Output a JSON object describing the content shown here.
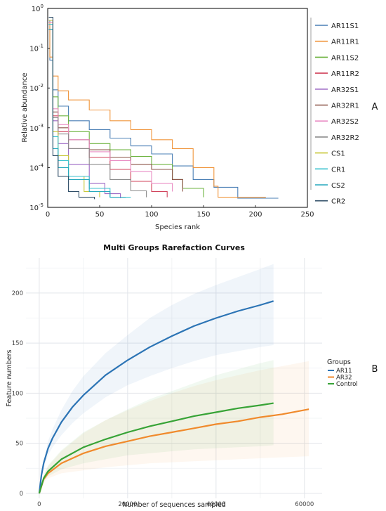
{
  "panel_labels": {
    "a": "A",
    "b": "B"
  },
  "chart_data": [
    {
      "type": "line",
      "panel": "A",
      "title": "",
      "xlabel": "Species rank",
      "ylabel": "Relative abundance",
      "y_scale": "log",
      "xlim": [
        0,
        250
      ],
      "ylim": [
        1e-05,
        1
      ],
      "x_ticks": [
        0,
        50,
        100,
        150,
        200,
        250
      ],
      "y_ticks": [
        {
          "value": 1,
          "base": "10",
          "exp": "0"
        },
        {
          "value": 0.1,
          "base": "10",
          "exp": "-1"
        },
        {
          "value": 0.01,
          "base": "10",
          "exp": "-2"
        },
        {
          "value": 0.001,
          "base": "10",
          "exp": "-3"
        },
        {
          "value": 0.0001,
          "base": "10",
          "exp": "-4"
        },
        {
          "value": 1e-05,
          "base": "10",
          "exp": "-5"
        }
      ],
      "grid": false,
      "legend_position": "right",
      "series": [
        {
          "name": "AR11S1",
          "color": "#4a7fb5",
          "x": [
            1,
            2,
            5,
            10,
            20,
            40,
            60,
            80,
            100,
            120,
            140,
            160,
            180,
            183,
            222
          ],
          "y": [
            0.5,
            0.05,
            0.009,
            0.0035,
            0.0015,
            0.0009,
            0.00055,
            0.00035,
            0.00022,
            0.00011,
            5e-05,
            3.2e-05,
            3.2e-05,
            1.7e-05,
            1.7e-05
          ]
        },
        {
          "name": "AR11R1",
          "color": "#f0953c",
          "x": [
            1,
            2,
            5,
            10,
            20,
            40,
            60,
            80,
            100,
            120,
            140,
            160,
            164,
            210
          ],
          "y": [
            0.45,
            0.06,
            0.02,
            0.0085,
            0.005,
            0.0028,
            0.0015,
            0.0009,
            0.0005,
            0.0003,
            0.0001,
            3.4e-05,
            1.8e-05,
            1.8e-05
          ]
        },
        {
          "name": "AR11S2",
          "color": "#6db33f",
          "x": [
            1,
            5,
            10,
            20,
            40,
            60,
            80,
            100,
            120,
            130,
            150
          ],
          "y": [
            0.5,
            0.006,
            0.002,
            0.0008,
            0.0004,
            0.00028,
            0.00019,
            0.00012,
            5e-05,
            3e-05,
            1.8e-05
          ]
        },
        {
          "name": "AR11R2",
          "color": "#d1435b",
          "x": [
            1,
            5,
            10,
            20,
            40,
            60,
            80,
            100,
            115
          ],
          "y": [
            0.4,
            0.002,
            0.0008,
            0.0003,
            0.00018,
            9e-05,
            4.5e-05,
            2.5e-05,
            1.8e-05
          ]
        },
        {
          "name": "AR32S1",
          "color": "#9b66c4",
          "x": [
            1,
            5,
            10,
            20,
            40,
            55,
            70
          ],
          "y": [
            0.5,
            0.0015,
            0.0004,
            0.00012,
            4e-05,
            2.2e-05,
            1.7e-05
          ]
        },
        {
          "name": "AR32R1",
          "color": "#8c5448",
          "x": [
            1,
            5,
            10,
            20,
            40,
            60,
            80,
            100,
            120,
            130
          ],
          "y": [
            0.3,
            0.0025,
            0.001,
            0.0005,
            0.00028,
            0.00018,
            0.00012,
            9e-05,
            5e-05,
            2.5e-05
          ]
        },
        {
          "name": "AR32S2",
          "color": "#e98cc4",
          "x": [
            1,
            5,
            10,
            20,
            40,
            60,
            80,
            100,
            120
          ],
          "y": [
            0.45,
            0.003,
            0.0012,
            0.0005,
            0.00025,
            0.00015,
            8e-05,
            4e-05,
            2.5e-05
          ]
        },
        {
          "name": "AR32R2",
          "color": "#8c8c8c",
          "x": [
            1,
            5,
            10,
            20,
            40,
            60,
            80,
            95
          ],
          "y": [
            0.3,
            0.0018,
            0.0007,
            0.0003,
            0.00012,
            5e-05,
            2.6e-05,
            1.8e-05
          ]
        },
        {
          "name": "CS1",
          "color": "#c9c83a",
          "x": [
            1,
            5,
            10,
            20,
            35,
            50
          ],
          "y": [
            0.5,
            0.0008,
            0.0002,
            6e-05,
            2.5e-05,
            1.8e-05
          ]
        },
        {
          "name": "CR1",
          "color": "#3cc2cf",
          "x": [
            1,
            5,
            10,
            20,
            40,
            60,
            80
          ],
          "y": [
            0.4,
            0.0006,
            0.00015,
            6e-05,
            3e-05,
            1.8e-05,
            1.8e-05
          ]
        },
        {
          "name": "CS2",
          "color": "#27a9bd",
          "x": [
            1,
            5,
            10,
            20,
            40,
            60,
            75
          ],
          "y": [
            0.3,
            0.0003,
            0.0001,
            5e-05,
            2.5e-05,
            1.8e-05,
            1.8e-05
          ]
        },
        {
          "name": "CR2",
          "color": "#2e4d66",
          "x": [
            1,
            5,
            10,
            20,
            30,
            45
          ],
          "y": [
            0.6,
            0.0002,
            6e-05,
            2.5e-05,
            1.8e-05,
            1.6e-05
          ]
        }
      ]
    },
    {
      "type": "line",
      "panel": "B",
      "title": "Multi Groups Rarefaction Curves",
      "xlabel": "Number of sequences sampled",
      "ylabel": "Feature numbers",
      "xlim": [
        -3000,
        64000
      ],
      "ylim": [
        -5,
        235
      ],
      "x_ticks": [
        0,
        20000,
        40000,
        60000
      ],
      "y_ticks": [
        0,
        50,
        100,
        150,
        200
      ],
      "grid": true,
      "background": "#ffffff",
      "legend_title": "Groups",
      "legend_position": "right",
      "series": [
        {
          "name": "AR11",
          "color": "#2c74b5",
          "x": [
            0,
            500,
            1000,
            2000,
            3000,
            5000,
            7500,
            10000,
            15000,
            20000,
            25000,
            30000,
            35000,
            40000,
            45000,
            50000,
            53000
          ],
          "y": [
            0,
            18,
            30,
            45,
            55,
            71,
            86,
            98,
            118,
            133,
            146,
            157,
            167,
            175,
            182,
            188,
            192
          ],
          "upper": [
            0,
            20,
            33,
            52,
            64,
            83,
            102,
            117,
            140,
            158,
            175,
            188,
            199,
            208,
            216,
            224,
            229
          ],
          "lower": [
            0,
            15,
            25,
            38,
            46,
            58,
            70,
            80,
            96,
            108,
            117,
            125,
            132,
            138,
            142,
            146,
            148
          ]
        },
        {
          "name": "AR32",
          "color": "#f08a2c",
          "x": [
            0,
            1000,
            2000,
            5000,
            10000,
            15000,
            20000,
            25000,
            30000,
            35000,
            40000,
            45000,
            50000,
            55000,
            61000
          ],
          "y": [
            0,
            14,
            20,
            30,
            40,
            47,
            52,
            57,
            61,
            65,
            69,
            72,
            76,
            79,
            84
          ],
          "upper": [
            0,
            18,
            27,
            42,
            60,
            73,
            83,
            92,
            100,
            107,
            113,
            118,
            123,
            127,
            132
          ],
          "lower": [
            0,
            11,
            15,
            20,
            23,
            26,
            28,
            30,
            31,
            32,
            33,
            34,
            35,
            36,
            37
          ]
        },
        {
          "name": "Control",
          "color": "#37a336",
          "x": [
            0,
            1000,
            2000,
            5000,
            10000,
            15000,
            20000,
            25000,
            30000,
            35000,
            40000,
            45000,
            50000,
            53000
          ],
          "y": [
            0,
            15,
            22,
            34,
            46,
            54,
            61,
            67,
            72,
            77,
            81,
            85,
            88,
            90
          ],
          "upper": [
            0,
            18,
            28,
            43,
            61,
            73,
            84,
            94,
            102,
            110,
            118,
            124,
            130,
            133
          ],
          "lower": [
            0,
            12,
            17,
            24,
            30,
            34,
            38,
            40,
            42,
            44,
            45,
            46,
            47,
            48
          ]
        }
      ]
    }
  ]
}
